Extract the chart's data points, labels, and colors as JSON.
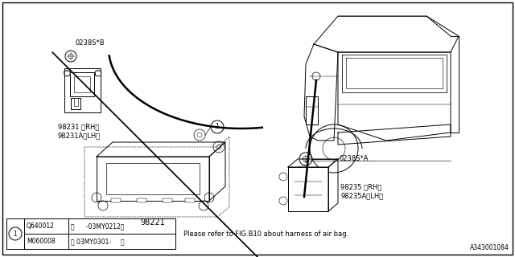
{
  "bg_color": "#ffffff",
  "diagram_id": "A343001084",
  "note_text": "Please refer to FIG.B10 about harness of air bag.",
  "lw": 0.7,
  "label_0238sB": "0238S*B",
  "label_98231": "98231 〈RH〉\n98231A〈LH〉",
  "label_98221": "98221",
  "label_0238sA": "0238S*A",
  "label_98235": "98235 〈RH〉\n98235A〈LH〉",
  "table_col1_row1": "Q640012",
  "table_col2_row1": "〈      -03MY0212〉",
  "table_col1_row2": "M060008",
  "table_col2_row2": "〈 03MY0301-     〉"
}
